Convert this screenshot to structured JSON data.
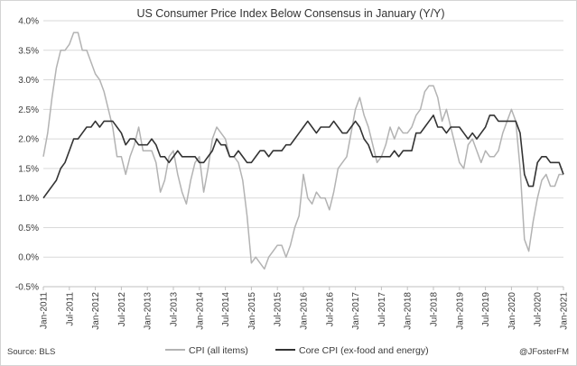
{
  "chart_data": {
    "type": "line",
    "title": "US Consumer Price Index Below Consensus in January (Y/Y)",
    "xlabel": "",
    "ylabel": "",
    "ylim": [
      -0.5,
      4.0
    ],
    "ytick_values": [
      -0.5,
      0.0,
      0.5,
      1.0,
      1.5,
      2.0,
      2.5,
      3.0,
      3.5,
      4.0
    ],
    "ytick_labels": [
      "-0.5%",
      "0.0%",
      "0.5%",
      "1.0%",
      "1.5%",
      "2.0%",
      "2.5%",
      "3.0%",
      "3.5%",
      "4.0%"
    ],
    "x_start": "2011-01",
    "x_end": "2021-01",
    "xtick_labels": [
      "Jan-2011",
      "Jul-2011",
      "Jan-2012",
      "Jul-2012",
      "Jan-2013",
      "Jul-2013",
      "Jan-2014",
      "Jul-2014",
      "Jan-2015",
      "Jul-2015",
      "Jan-2016",
      "Jul-2016",
      "Jan-2017",
      "Jul-2017",
      "Jan-2018",
      "Jul-2018",
      "Jan-2019",
      "Jul-2019",
      "Jan-2020",
      "Jul-2020",
      "Jan-2021"
    ],
    "grid": true,
    "legend_position": "bottom",
    "source": "Source: BLS",
    "credit": "@JFosterFM",
    "series": [
      {
        "name": "CPI (all items)",
        "color": "#b3b3b3",
        "values": [
          1.7,
          2.1,
          2.7,
          3.2,
          3.5,
          3.5,
          3.6,
          3.8,
          3.8,
          3.5,
          3.5,
          3.3,
          3.1,
          3.0,
          2.8,
          2.5,
          2.2,
          1.7,
          1.7,
          1.4,
          1.7,
          1.9,
          2.2,
          1.8,
          1.8,
          1.8,
          1.6,
          1.1,
          1.3,
          1.7,
          1.8,
          1.4,
          1.1,
          0.9,
          1.3,
          1.6,
          1.7,
          1.1,
          1.5,
          2.0,
          2.2,
          2.1,
          2.0,
          1.7,
          1.7,
          1.6,
          1.3,
          0.7,
          -0.1,
          0.0,
          -0.1,
          -0.2,
          0.0,
          0.1,
          0.2,
          0.2,
          0.0,
          0.2,
          0.5,
          0.7,
          1.4,
          1.0,
          0.9,
          1.1,
          1.0,
          1.0,
          0.8,
          1.1,
          1.5,
          1.6,
          1.7,
          2.1,
          2.5,
          2.7,
          2.4,
          2.2,
          1.9,
          1.6,
          1.7,
          1.9,
          2.2,
          2.0,
          2.2,
          2.1,
          2.1,
          2.2,
          2.4,
          2.5,
          2.8,
          2.9,
          2.9,
          2.7,
          2.3,
          2.5,
          2.2,
          1.9,
          1.6,
          1.5,
          1.9,
          2.0,
          1.8,
          1.6,
          1.8,
          1.7,
          1.7,
          1.8,
          2.1,
          2.3,
          2.5,
          2.3,
          1.5,
          0.3,
          0.1,
          0.6,
          1.0,
          1.3,
          1.4,
          1.2,
          1.2,
          1.4,
          1.4
        ]
      },
      {
        "name": "Core CPI (ex-food and energy)",
        "color": "#333333",
        "values": [
          1.0,
          1.1,
          1.2,
          1.3,
          1.5,
          1.6,
          1.8,
          2.0,
          2.0,
          2.1,
          2.2,
          2.2,
          2.3,
          2.2,
          2.3,
          2.3,
          2.3,
          2.2,
          2.1,
          1.9,
          2.0,
          2.0,
          1.9,
          1.9,
          1.9,
          2.0,
          1.9,
          1.7,
          1.7,
          1.6,
          1.7,
          1.8,
          1.7,
          1.7,
          1.7,
          1.7,
          1.6,
          1.6,
          1.7,
          1.8,
          2.0,
          1.9,
          1.9,
          1.7,
          1.7,
          1.8,
          1.7,
          1.6,
          1.6,
          1.7,
          1.8,
          1.8,
          1.7,
          1.8,
          1.8,
          1.8,
          1.9,
          1.9,
          2.0,
          2.1,
          2.2,
          2.3,
          2.2,
          2.1,
          2.2,
          2.2,
          2.2,
          2.3,
          2.2,
          2.1,
          2.1,
          2.2,
          2.3,
          2.2,
          2.0,
          1.9,
          1.7,
          1.7,
          1.7,
          1.7,
          1.7,
          1.8,
          1.7,
          1.8,
          1.8,
          1.8,
          2.1,
          2.1,
          2.2,
          2.3,
          2.4,
          2.2,
          2.2,
          2.1,
          2.2,
          2.2,
          2.2,
          2.1,
          2.0,
          2.1,
          2.0,
          2.1,
          2.2,
          2.4,
          2.4,
          2.3,
          2.3,
          2.3,
          2.3,
          2.3,
          2.1,
          1.4,
          1.2,
          1.2,
          1.6,
          1.7,
          1.7,
          1.6,
          1.6,
          1.6,
          1.4
        ]
      }
    ]
  }
}
